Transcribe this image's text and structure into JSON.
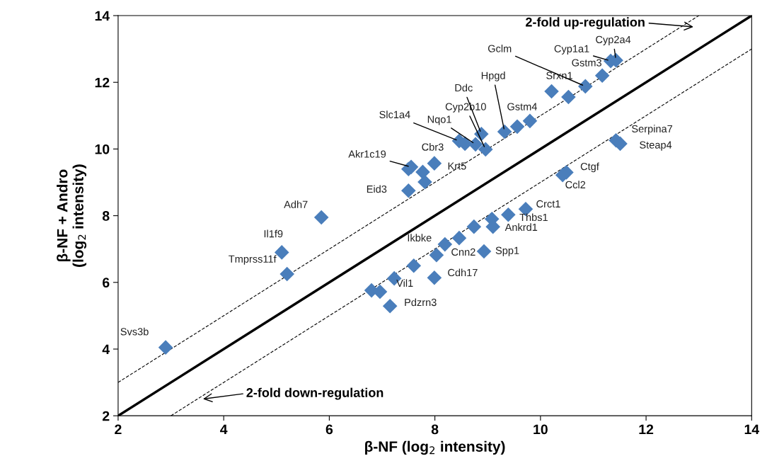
{
  "chart_data": {
    "type": "scatter",
    "xlabel": "β-NF (log$_{2}$ intensity)",
    "ylabel": "β-NF + Andro\n(log$_{2}$ intensity)",
    "xlim": [
      2,
      14
    ],
    "ylim": [
      2,
      14
    ],
    "xticks": [
      2,
      4,
      6,
      8,
      10,
      12,
      14
    ],
    "yticks": [
      2,
      4,
      6,
      8,
      10,
      12,
      14
    ],
    "grid": false,
    "marker": "diamond",
    "series": [
      {
        "color": "#4a7ebb",
        "x": [
          2.9,
          5.2,
          5.1,
          5.85,
          7.5,
          7.55,
          7.77,
          7.81,
          7.99,
          7.5,
          8.46,
          8.57,
          8.77,
          8.88,
          8.96,
          9.32,
          9.56,
          9.8,
          10.21,
          10.53,
          10.85,
          11.17,
          11.33,
          11.43,
          11.43,
          11.51,
          10.49,
          10.42,
          9.72,
          9.39,
          9.08,
          9.1,
          8.74,
          8.46,
          8.19,
          8.03,
          8.93,
          7.6,
          7.99,
          7.23,
          6.8,
          6.96,
          7.15
        ],
        "values": [
          4.05,
          6.25,
          6.9,
          7.95,
          9.4,
          9.46,
          9.31,
          9.01,
          9.57,
          8.75,
          10.24,
          10.16,
          10.14,
          10.45,
          9.99,
          10.52,
          10.67,
          10.84,
          11.73,
          11.56,
          11.88,
          12.2,
          12.64,
          12.66,
          10.26,
          10.16,
          9.3,
          9.22,
          8.2,
          8.03,
          7.9,
          7.67,
          7.67,
          7.33,
          7.14,
          6.82,
          6.93,
          6.5,
          6.14,
          6.12,
          5.76,
          5.72,
          5.29
        ]
      },
      {
        "type": "line",
        "marker": "none",
        "color": "#000000",
        "line_style": "solid",
        "x": [
          2,
          14
        ],
        "values": [
          2,
          14
        ]
      },
      {
        "type": "line",
        "marker": "none",
        "color": "#000000",
        "line_style": "dashed",
        "x": [
          2,
          13
        ],
        "values": [
          3,
          14
        ]
      },
      {
        "type": "line",
        "marker": "none",
        "color": "#000000",
        "line_style": "dashed",
        "x": [
          3,
          14
        ],
        "values": [
          2,
          13
        ]
      }
    ],
    "annotations": [
      {
        "text": "Svs3b",
        "x": 2.9,
        "y": 4.05
      },
      {
        "text": "Tmprss11f",
        "x": 5.2,
        "y": 6.25
      },
      {
        "text": "Il1f9",
        "x": 5.1,
        "y": 6.9
      },
      {
        "text": "Adh7",
        "x": 5.85,
        "y": 7.95
      },
      {
        "text": "Eid3",
        "x": 7.5,
        "y": 8.75
      },
      {
        "text": "Akr1c19",
        "x": 7.55,
        "y": 9.46
      },
      {
        "text": "Cbr3",
        "x": 7.77,
        "y": 9.31
      },
      {
        "text": "Krt5",
        "x": 7.99,
        "y": 9.57
      },
      {
        "text": "Slc1a4",
        "x": 8.46,
        "y": 10.24
      },
      {
        "text": "Nqo1",
        "x": 8.77,
        "y": 10.14
      },
      {
        "text": "Cyp2b10",
        "x": 8.96,
        "y": 9.99
      },
      {
        "text": "Ddc",
        "x": 8.88,
        "y": 10.45
      },
      {
        "text": "Hpgd",
        "x": 9.32,
        "y": 10.52
      },
      {
        "text": "Gstm4",
        "x": 9.8,
        "y": 10.84
      },
      {
        "text": "Srxn1",
        "x": 10.21,
        "y": 11.73
      },
      {
        "text": "Gclm",
        "x": 10.85,
        "y": 11.88
      },
      {
        "text": "Gstm3",
        "x": 11.17,
        "y": 12.2
      },
      {
        "text": "Cyp1a1",
        "x": 11.33,
        "y": 12.64
      },
      {
        "text": "Cyp2a4",
        "x": 11.43,
        "y": 12.66
      },
      {
        "text": "Serpina7",
        "x": 11.43,
        "y": 10.26
      },
      {
        "text": "Steap4",
        "x": 11.51,
        "y": 10.16
      },
      {
        "text": "Ctgf",
        "x": 10.49,
        "y": 9.3
      },
      {
        "text": "Ccl2",
        "x": 10.42,
        "y": 9.22
      },
      {
        "text": "Crct1",
        "x": 9.72,
        "y": 8.2
      },
      {
        "text": "Thbs1",
        "x": 9.39,
        "y": 8.03
      },
      {
        "text": "Ankrd1",
        "x": 9.1,
        "y": 7.67
      },
      {
        "text": "Ikbke",
        "x": 8.19,
        "y": 7.14
      },
      {
        "text": "Cnn2",
        "x": 8.03,
        "y": 6.82
      },
      {
        "text": "Spp1",
        "x": 8.93,
        "y": 6.93
      },
      {
        "text": "Cdh17",
        "x": 7.99,
        "y": 6.14
      },
      {
        "text": "Vil1",
        "x": 7.23,
        "y": 6.12
      },
      {
        "text": "Pdzrn3",
        "x": 7.15,
        "y": 5.29
      },
      "2-fold up-regulation",
      "2-fold down-regulation"
    ]
  }
}
